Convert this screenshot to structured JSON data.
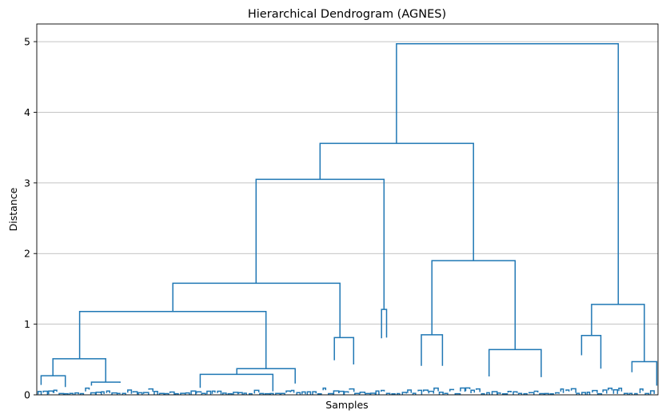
{
  "chart_data": {
    "type": "dendrogram",
    "title": "Hierarchical Dendrogram (AGNES)",
    "xlabel": "Samples",
    "ylabel": "Distance",
    "ylim": [
      0,
      5.25
    ],
    "xlim": [
      0,
      1
    ],
    "yticks": [
      0,
      1,
      2,
      3,
      4,
      5
    ],
    "grid": "y-axis",
    "color": "#1f77b4",
    "links": [
      {
        "x": [
          0.579,
          0.579,
          0.936,
          0.936
        ],
        "y": [
          3.56,
          4.97,
          4.97,
          1.28
        ]
      },
      {
        "x": [
          0.456,
          0.456,
          0.703,
          0.703
        ],
        "y": [
          3.05,
          3.56,
          3.56,
          1.9
        ]
      },
      {
        "x": [
          0.353,
          0.353,
          0.559,
          0.559
        ],
        "y": [
          1.58,
          3.05,
          3.05,
          1.21
        ]
      },
      {
        "x": [
          0.219,
          0.219,
          0.488,
          0.488
        ],
        "y": [
          1.18,
          1.58,
          1.58,
          0.81
        ]
      },
      {
        "x": [
          0.069,
          0.069,
          0.369,
          0.369
        ],
        "y": [
          0.51,
          1.18,
          1.18,
          0.37
        ]
      },
      {
        "x": [
          0.026,
          0.026,
          0.111,
          0.111
        ],
        "y": [
          0.27,
          0.51,
          0.51,
          0.18
        ]
      },
      {
        "x": [
          0.007,
          0.007,
          0.046,
          0.046
        ],
        "y": [
          0.14,
          0.27,
          0.27,
          0.11
        ]
      },
      {
        "x": [
          0.088,
          0.088,
          0.134,
          0.134
        ],
        "y": [
          0.13,
          0.18,
          0.18,
          0.17
        ]
      },
      {
        "x": [
          0.322,
          0.322,
          0.416,
          0.416
        ],
        "y": [
          0.29,
          0.37,
          0.37,
          0.16
        ]
      },
      {
        "x": [
          0.263,
          0.263,
          0.38,
          0.38
        ],
        "y": [
          0.1,
          0.29,
          0.29,
          0.05
        ]
      },
      {
        "x": [
          0.479,
          0.479,
          0.51,
          0.51
        ],
        "y": [
          0.49,
          0.81,
          0.81,
          0.43
        ]
      },
      {
        "x": [
          0.555,
          0.555,
          0.563,
          0.563
        ],
        "y": [
          0.8,
          1.21,
          1.21,
          0.81
        ]
      },
      {
        "x": [
          0.636,
          0.636,
          0.77,
          0.77
        ],
        "y": [
          0.85,
          1.9,
          1.9,
          0.64
        ]
      },
      {
        "x": [
          0.619,
          0.619,
          0.653,
          0.653
        ],
        "y": [
          0.41,
          0.85,
          0.85,
          0.41
        ]
      },
      {
        "x": [
          0.728,
          0.728,
          0.812,
          0.812
        ],
        "y": [
          0.26,
          0.64,
          0.64,
          0.25
        ]
      },
      {
        "x": [
          0.893,
          0.893,
          0.978,
          0.978
        ],
        "y": [
          0.84,
          1.28,
          1.28,
          0.47
        ]
      },
      {
        "x": [
          0.877,
          0.877,
          0.908,
          0.908
        ],
        "y": [
          0.56,
          0.84,
          0.84,
          0.37
        ]
      },
      {
        "x": [
          0.958,
          0.958,
          0.998,
          0.998
        ],
        "y": [
          0.32,
          0.47,
          0.47,
          0.13
        ]
      }
    ]
  }
}
